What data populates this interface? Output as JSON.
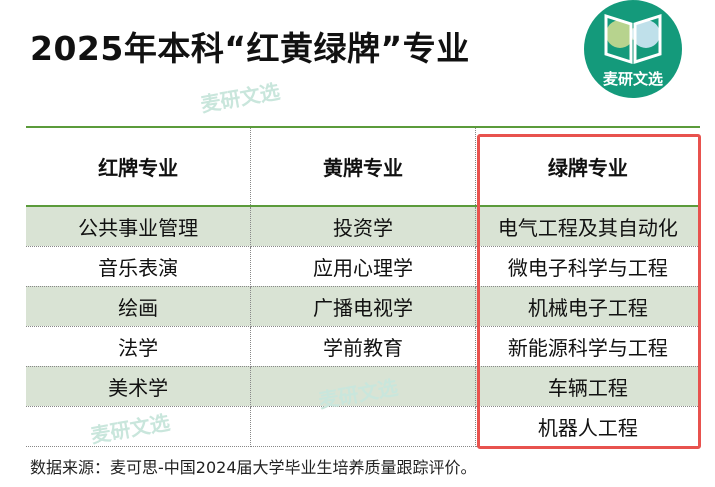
{
  "title": "2025年本科“红黄绿牌”专业",
  "logo": {
    "text": "麦研文选",
    "color": "#149a7b"
  },
  "watermark": "麦研文选",
  "table": {
    "headers": [
      "红牌专业",
      "黄牌专业",
      "绿牌专业"
    ],
    "rows": [
      [
        "公共事业管理",
        "投资学",
        "电气工程及其自动化"
      ],
      [
        "音乐表演",
        "应用心理学",
        "微电子科学与工程"
      ],
      [
        "绘画",
        "广播电视学",
        "机械电子工程"
      ],
      [
        "法学",
        "学前教育",
        "新能源科学与工程"
      ],
      [
        "美术学",
        "",
        "车辆工程"
      ],
      [
        "",
        "",
        "机器人工程"
      ]
    ]
  },
  "highlight_color": "#e8524e",
  "source": "数据来源：麦可思-中国2024届大学毕业生培养质量跟踪评价。"
}
